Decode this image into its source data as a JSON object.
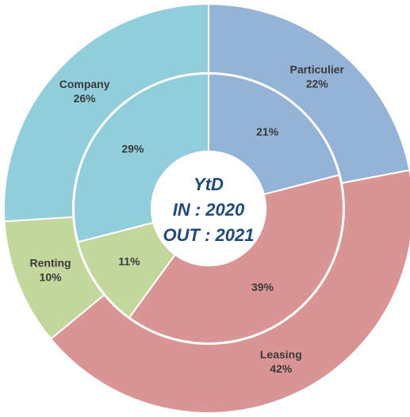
{
  "chart_data": {
    "type": "donut",
    "center_text": [
      "YtD",
      "IN : 2020",
      "OUT : 2021"
    ],
    "categories": [
      "Particulier",
      "Leasing",
      "Renting",
      "Company"
    ],
    "colors": [
      "#95b3d7",
      "#d99594",
      "#c3d69b",
      "#92cddc"
    ],
    "series": [
      {
        "values": [
          22,
          42,
          10,
          26
        ],
        "value_labels": [
          "22%",
          "42%",
          "10%",
          "26%"
        ]
      },
      {
        "values": [
          21,
          39,
          11,
          29
        ],
        "value_labels": [
          "21%",
          "39%",
          "11%",
          "29%"
        ]
      }
    ]
  }
}
